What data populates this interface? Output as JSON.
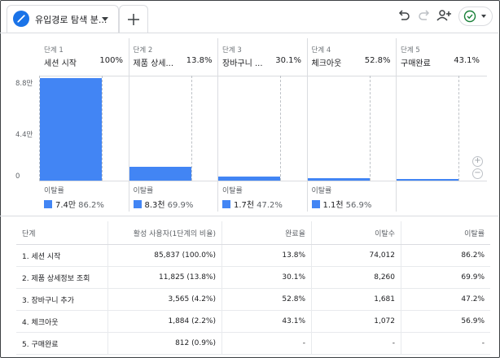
{
  "toolbar": {
    "tab_title": "유입경로 탐색 분...",
    "icons": [
      "pencil-icon",
      "caret-down-icon",
      "plus-icon",
      "undo-icon",
      "redo-icon",
      "share-user-icon",
      "check-circle-icon"
    ]
  },
  "funnel": {
    "y_ticks": [
      "8.8만",
      "4.4만",
      "0"
    ],
    "drop_label": "이탈률",
    "steps": [
      {
        "num": "단계 1",
        "name": "세션 시작",
        "pct": "100%",
        "drop_value": "7.4만",
        "drop_rate": "86.2%"
      },
      {
        "num": "단계 2",
        "name": "제품 상세...",
        "pct": "13.8%",
        "drop_value": "8.3천",
        "drop_rate": "69.9%"
      },
      {
        "num": "단계 3",
        "name": "장바구니 ...",
        "pct": "30.1%",
        "drop_value": "1.7천",
        "drop_rate": "47.2%"
      },
      {
        "num": "단계 4",
        "name": "체크아웃",
        "pct": "52.8%",
        "drop_value": "1.1천",
        "drop_rate": "56.9%"
      },
      {
        "num": "단계 5",
        "name": "구매완료",
        "pct": "43.1%"
      }
    ]
  },
  "chart_data": {
    "type": "bar",
    "categories": [
      "세션 시작",
      "제품 상세...",
      "장바구니 ...",
      "체크아웃",
      "구매완료"
    ],
    "values": [
      85837,
      11825,
      3565,
      1884,
      812
    ],
    "ylim": [
      0,
      88000
    ]
  },
  "table": {
    "headers": [
      "단계",
      "활성 사용자(1단계의 비율)",
      "완료율",
      "이탈수",
      "이탈률"
    ],
    "rows": [
      [
        "1. 세션 시작",
        "85,837 (100.0%)",
        "13.8%",
        "74,012",
        "86.2%"
      ],
      [
        "2. 제품 상세정보 조회",
        "11,825 (13.8%)",
        "30.1%",
        "8,260",
        "69.9%"
      ],
      [
        "3. 장바구니 추가",
        "3,565 (4.2%)",
        "52.8%",
        "1,681",
        "47.2%"
      ],
      [
        "4. 체크아웃",
        "1,884 (2.2%)",
        "43.1%",
        "1,072",
        "56.9%"
      ],
      [
        "5. 구매완료",
        "812 (0.9%)",
        "-",
        "-",
        "-"
      ]
    ]
  }
}
